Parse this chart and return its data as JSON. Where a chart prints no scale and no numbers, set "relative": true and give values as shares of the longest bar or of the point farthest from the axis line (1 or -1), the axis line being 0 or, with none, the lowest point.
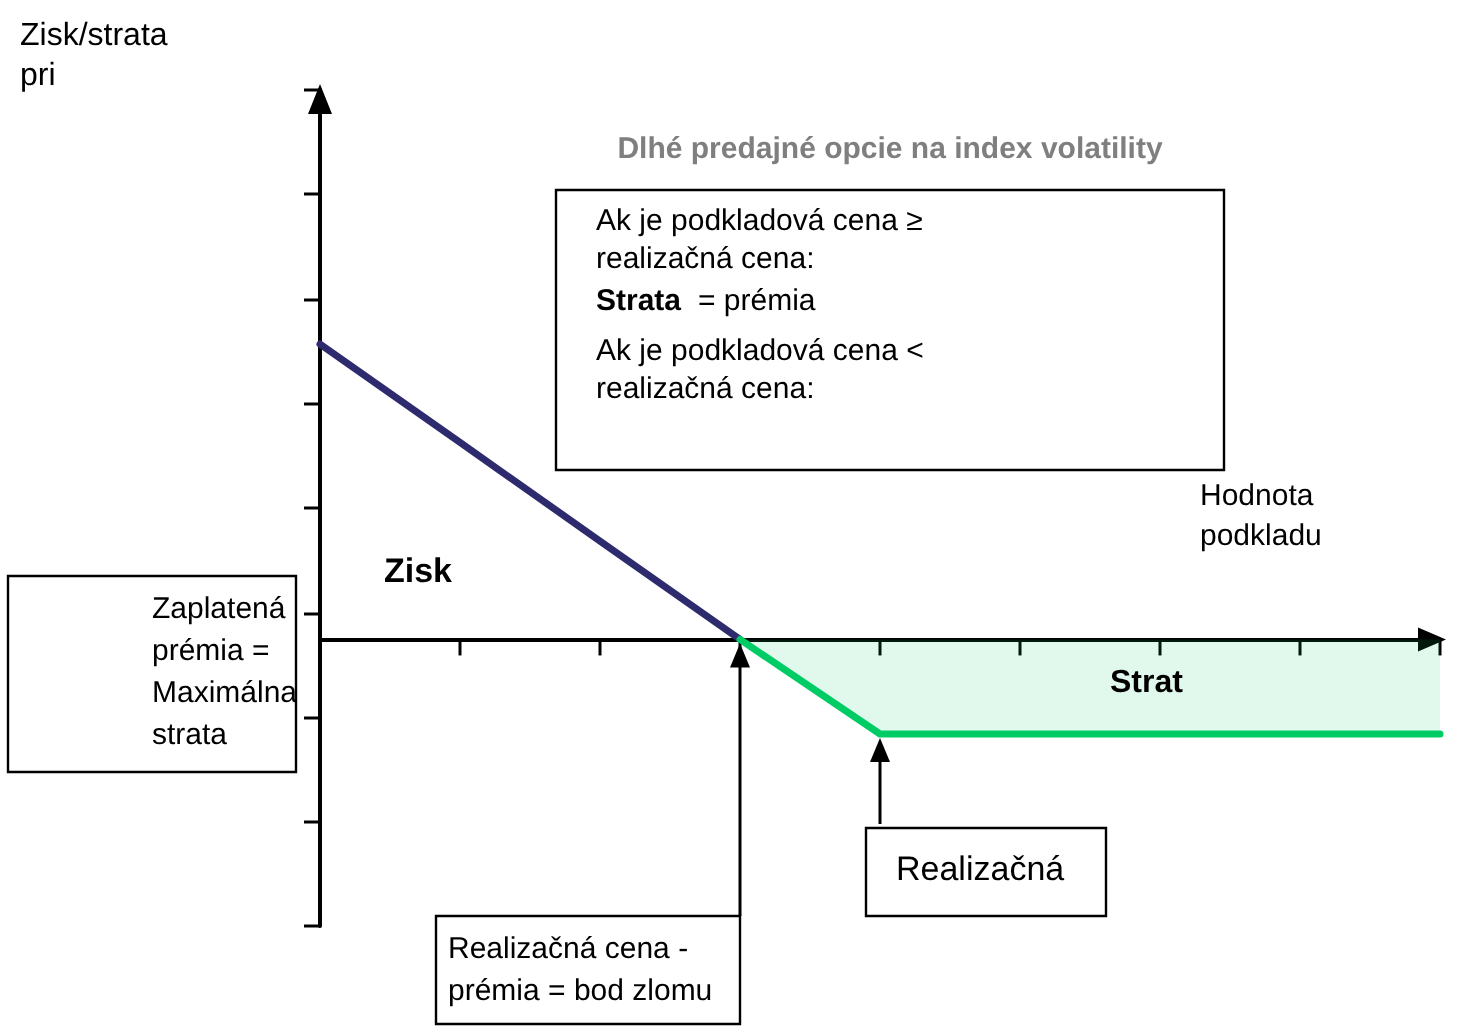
{
  "chart_data": {
    "type": "line",
    "relative": true,
    "title": "Dlhé predajné opcie na index volatility",
    "xlabel": "Hodnota podkladu",
    "categories": [
      null,
      null,
      null,
      null,
      null,
      null,
      null,
      null,
      null
    ],
    "series": [
      {
        "color": "#2e2a6e",
        "values": [
          1,
          0.667,
          0.333,
          0,
          null,
          null,
          null,
          null,
          null
        ]
      },
      {
        "type": "area",
        "color": "#00cc66",
        "values": [
          null,
          null,
          null,
          0,
          -0.32,
          -0.32,
          -0.32,
          -0.32,
          -0.32
        ]
      }
    ],
    "annotations": [
      "Ak je podkladová cena ≥ realizačná cena:",
      "Strata",
      "= prémia",
      "Ak je podkladová cena < realizačná cena:",
      "Zisk",
      "Strat",
      "Zaplatená prémia = Maximálna strata",
      "Realizačná",
      "Realizačná cena - prémia = bod zlomu",
      "Zisk/strata pri"
    ],
    "grid": false,
    "marker": "none",
    "line_style": "solid"
  }
}
